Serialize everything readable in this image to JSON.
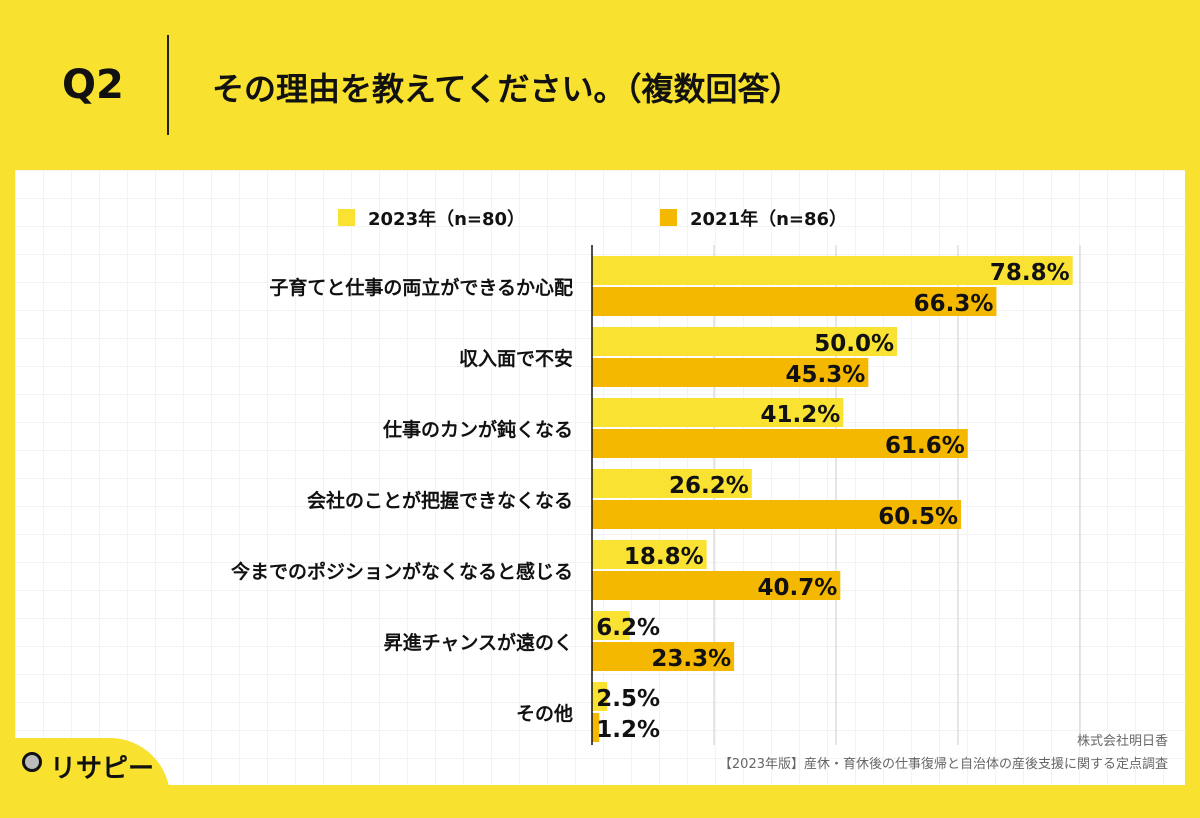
{
  "header": {
    "question": "Q2",
    "title": "その理由を教えてください。（複数回答）"
  },
  "chart_data": {
    "type": "bar",
    "orientation": "horizontal",
    "categories": [
      "子育てと仕事の両立ができるか心配",
      "収入面で不安",
      "仕事のカンが鈍くなる",
      "会社のことが把握できなくなる",
      "今までのポジションがなくなると感じる",
      "昇進チャンスが遠のく",
      "その他"
    ],
    "series": [
      {
        "name": "2023年（n=80）",
        "color": "#F9E231",
        "values": [
          78.8,
          50.0,
          41.2,
          26.2,
          18.8,
          6.2,
          2.5
        ]
      },
      {
        "name": "2021年（n=86）",
        "color": "#F5B800",
        "values": [
          66.3,
          45.3,
          61.6,
          60.5,
          40.7,
          23.3,
          1.2
        ]
      }
    ],
    "value_format": "%",
    "xlim": [
      0,
      80
    ],
    "grid": true,
    "legend": "top"
  },
  "footer": {
    "company": "株式会社明日香",
    "source": "【2023年版】産休・育休後の仕事復帰と自治体の産後支援に関する定点調査",
    "logo": "リサピー"
  }
}
